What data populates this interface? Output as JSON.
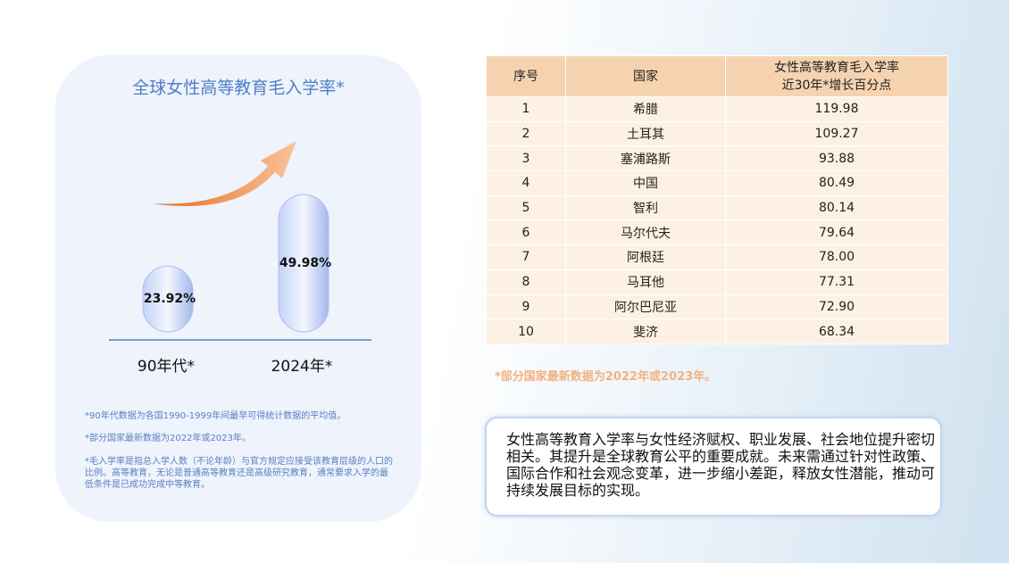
{
  "chart_data": {
    "type": "bar",
    "title": "全球女性高等教育毛入学率*",
    "categories": [
      "90年代*",
      "2024年*"
    ],
    "values": [
      23.92,
      49.98
    ],
    "value_labels": [
      "23.92%",
      "49.98%"
    ],
    "color": "#a9bdf0"
  },
  "notes": [
    "*90年代数据为各国1990-1999年间最早可得统计数据的平均值。",
    "*部分国家最新数据为2022年或2023年。",
    "*毛入学率是指总入学人数（不论年龄）与官方规定应接受该教育层级的人口的比例。高等教育，无论是普通高等教育还是高级研究教育，通常要求入学的最低条件是已成功完成中等教育。"
  ],
  "table": {
    "header": [
      "序号",
      "国家",
      [
        "女性高等教育毛入学率",
        "近30年*增长百分点"
      ]
    ],
    "rows": [
      [
        "1",
        "希腊",
        "119.98"
      ],
      [
        "2",
        "土耳其",
        "109.27"
      ],
      [
        "3",
        "塞浦路斯",
        "93.88"
      ],
      [
        "4",
        "中国",
        "80.49"
      ],
      [
        "5",
        "智利",
        "80.14"
      ],
      [
        "6",
        "马尔代夫",
        "79.64"
      ],
      [
        "7",
        "阿根廷",
        "78.00"
      ],
      [
        "8",
        "马耳他",
        "77.31"
      ],
      [
        "9",
        "阿尔巴尼亚",
        "72.90"
      ],
      [
        "10",
        "斐济",
        "68.34"
      ]
    ]
  },
  "table_note": "*部分国家最新数据为2022年或2023年。",
  "summary": "女性高等教育入学率与女性经济赋权、职业发展、社会地位提升密切相关。其提升是全球教育公平的重要成就。未来需通过针对性政策、国际合作和社会观念变革，进一步缩小差距，释放女性潜能，推动可持续发展目标的实现。"
}
